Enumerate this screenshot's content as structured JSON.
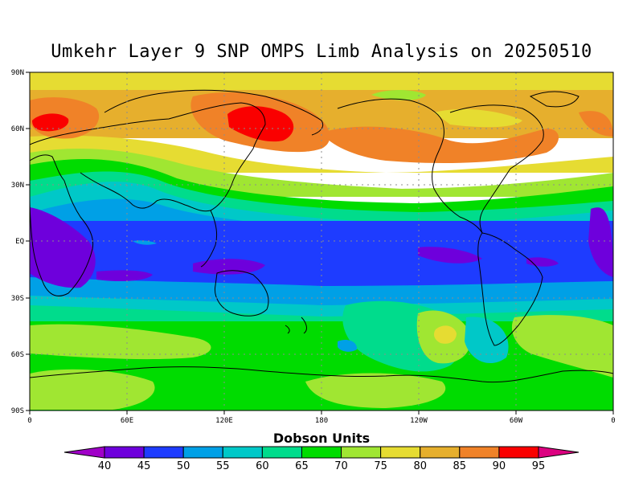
{
  "title": "Umkehr Layer 9 SNP OMPS Limb Analysis on 20250510",
  "map": {
    "lon_ticks": [
      "0",
      "60E",
      "120E",
      "180",
      "120W",
      "60W",
      "0"
    ],
    "lat_ticks": [
      "90N",
      "60N",
      "30N",
      "EQ",
      "30S",
      "60S",
      "90S"
    ],
    "gridlines": true
  },
  "colorbar": {
    "title": "Dobson Units",
    "levels": [
      "40",
      "45",
      "50",
      "55",
      "60",
      "65",
      "70",
      "75",
      "80",
      "85",
      "90",
      "95"
    ],
    "colors": [
      "#a000c8",
      "#6e00dc",
      "#1e3cff",
      "#00a0e6",
      "#00c8c8",
      "#00dc8c",
      "#00dc00",
      "#a0e632",
      "#e6dc32",
      "#e6af2d",
      "#f08228",
      "#fa0000",
      "#dc0080"
    ]
  }
}
